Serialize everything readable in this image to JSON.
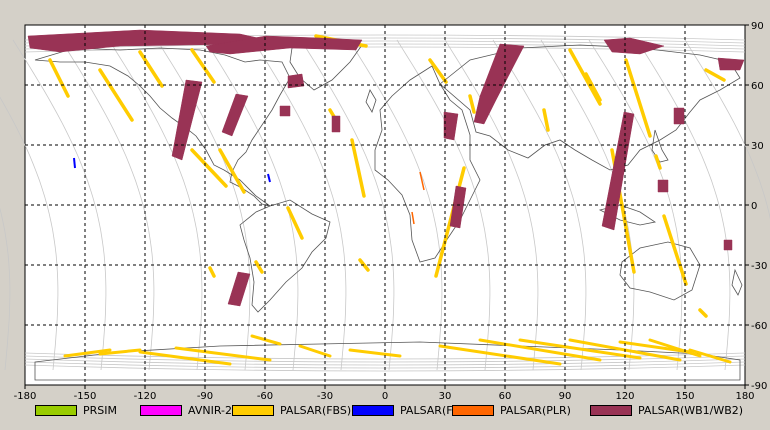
{
  "map": {
    "lon_range": [
      -180,
      180
    ],
    "lat_range": [
      -90,
      90
    ],
    "lon_ticks": [
      "-180",
      "-150",
      "-120",
      "-90",
      "-60",
      "-30",
      "0",
      "30",
      "60",
      "90",
      "120",
      "150",
      "180"
    ],
    "lat_ticks": [
      "90",
      "60",
      "30",
      "0",
      "-30",
      "-60",
      "-90"
    ],
    "grid": true,
    "grid_style": "dashed",
    "colors": {
      "background": "#ffffff",
      "frame_background": "#d4d0c8",
      "coastline": "#555555",
      "orbit_track": "#c8c8c8"
    }
  },
  "legend": [
    {
      "label": "PRSIM",
      "color": "#99cc00"
    },
    {
      "label": "AVNIR-2",
      "color": "#ff00ff"
    },
    {
      "label": "PALSAR(FBS)",
      "color": "#ffcc00"
    },
    {
      "label": "PALSAR(FBD)",
      "color": "#0000ff"
    },
    {
      "label": "PALSAR(PLR)",
      "color": "#ff6600"
    },
    {
      "label": "PALSAR(WB1/WB2)",
      "color": "#993355"
    }
  ]
}
